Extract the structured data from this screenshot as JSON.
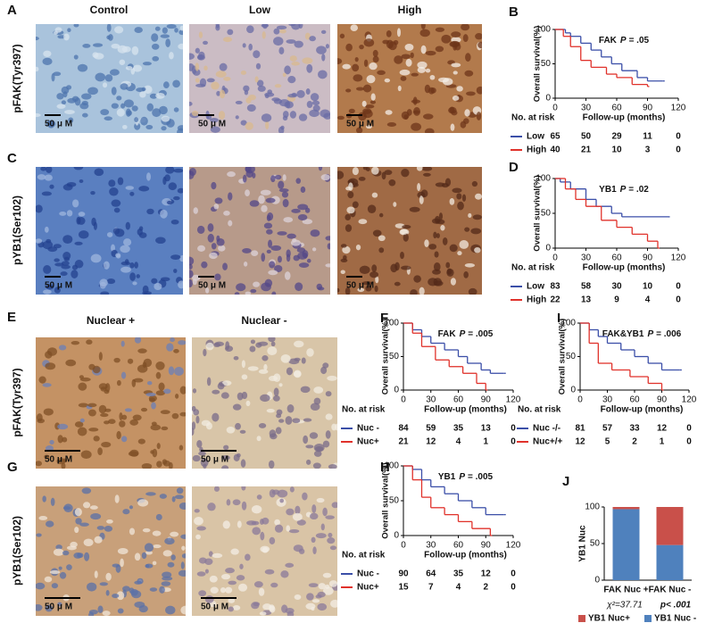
{
  "image_panels": [
    {
      "label": "A",
      "columns": [
        "Control",
        "Low",
        "High"
      ],
      "row_label": "pFAK(Tyr397)",
      "scale_bar": "50 μ M"
    },
    {
      "label": "C",
      "row_label": "pYB1(Ser102)",
      "scale_bar": "50 μ M"
    },
    {
      "label": "E",
      "columns": [
        "Nuclear +",
        "Nuclear -"
      ],
      "row_label": "pFAK(Tyr397)",
      "scale_bar": "50 μ M"
    },
    {
      "label": "G",
      "row_label": "pYB1(Ser102)",
      "scale_bar": "50 μ M"
    }
  ],
  "chart_data": [
    {
      "type": "survival",
      "panel_label": "B",
      "title": "FAK",
      "p_symbol": "P",
      "p_value": "= .05",
      "xlabel": "Follow-up (months)",
      "ylabel": "Overall survival(%)",
      "xlim": [
        0,
        120
      ],
      "xticks": [
        0,
        30,
        60,
        90,
        120
      ],
      "ylim": [
        0,
        100
      ],
      "yticks": [
        0,
        50,
        100
      ],
      "risk_label": "No. at risk",
      "series": [
        {
          "name": "Low",
          "color": "#3b4fa8",
          "x": [
            0,
            10,
            15,
            25,
            35,
            45,
            55,
            65,
            80,
            90,
            105
          ],
          "values": [
            100,
            95,
            90,
            80,
            70,
            60,
            50,
            40,
            30,
            25,
            25
          ],
          "at_risk": [
            65,
            50,
            29,
            11,
            0
          ]
        },
        {
          "name": "High",
          "color": "#e0322b",
          "x": [
            0,
            8,
            15,
            25,
            35,
            50,
            60,
            75,
            90
          ],
          "values": [
            100,
            90,
            75,
            55,
            45,
            35,
            30,
            20,
            17
          ],
          "at_risk": [
            40,
            21,
            10,
            3,
            0
          ]
        }
      ]
    },
    {
      "type": "survival",
      "panel_label": "D",
      "title": "YB1",
      "p_symbol": "P",
      "p_value": "= .02",
      "xlabel": "Follow-up (months)",
      "ylabel": "Overall survival(%)",
      "xlim": [
        0,
        120
      ],
      "xticks": [
        0,
        30,
        60,
        90,
        120
      ],
      "ylim": [
        0,
        100
      ],
      "yticks": [
        0,
        50,
        100
      ],
      "risk_label": "No. at risk",
      "series": [
        {
          "name": "Low",
          "color": "#3b4fa8",
          "x": [
            0,
            5,
            15,
            30,
            40,
            55,
            65,
            110
          ],
          "values": [
            100,
            95,
            85,
            70,
            60,
            50,
            45,
            45
          ],
          "at_risk": [
            83,
            58,
            30,
            10,
            0
          ]
        },
        {
          "name": "High",
          "color": "#e0322b",
          "x": [
            0,
            10,
            20,
            30,
            45,
            60,
            75,
            90,
            100
          ],
          "values": [
            100,
            85,
            70,
            60,
            40,
            30,
            20,
            10,
            0
          ],
          "at_risk": [
            22,
            13,
            9,
            4,
            0
          ]
        }
      ]
    },
    {
      "type": "survival",
      "panel_label": "F",
      "title": "FAK",
      "p_symbol": "P",
      "p_value": "= .005",
      "xlabel": "Follow-up (months)",
      "ylabel": "Overall survival(%)",
      "xlim": [
        0,
        120
      ],
      "xticks": [
        0,
        30,
        60,
        90,
        120
      ],
      "ylim": [
        0,
        100
      ],
      "yticks": [
        0,
        50,
        100
      ],
      "risk_label": "No. at risk",
      "series": [
        {
          "name": "Nuc -",
          "color": "#3b4fa8",
          "x": [
            0,
            10,
            20,
            30,
            45,
            60,
            70,
            85,
            95,
            110
          ],
          "values": [
            100,
            90,
            80,
            70,
            60,
            50,
            40,
            30,
            25,
            25
          ],
          "at_risk": [
            84,
            59,
            35,
            13,
            0
          ]
        },
        {
          "name": "Nuc+",
          "color": "#e0322b",
          "x": [
            0,
            10,
            20,
            35,
            50,
            65,
            80,
            90
          ],
          "values": [
            100,
            85,
            65,
            45,
            35,
            25,
            10,
            0
          ],
          "at_risk": [
            21,
            12,
            4,
            1,
            0
          ]
        }
      ]
    },
    {
      "type": "survival",
      "panel_label": "I",
      "title": "FAK&YB1",
      "p_symbol": "P",
      "p_value": "= .006",
      "xlabel": "Follow-up (months)",
      "ylabel": "Overall survival(%)",
      "xlim": [
        0,
        120
      ],
      "xticks": [
        0,
        30,
        60,
        90,
        120
      ],
      "ylim": [
        0,
        100
      ],
      "yticks": [
        0,
        50,
        100
      ],
      "risk_label": "No. at risk",
      "series": [
        {
          "name": "Nuc -/-",
          "color": "#3b4fa8",
          "x": [
            0,
            10,
            20,
            30,
            45,
            60,
            75,
            90,
            110
          ],
          "values": [
            100,
            90,
            80,
            70,
            60,
            50,
            40,
            30,
            30
          ],
          "at_risk": [
            81,
            57,
            33,
            12,
            0
          ]
        },
        {
          "name": "Nuc+/+",
          "color": "#e0322b",
          "x": [
            0,
            10,
            20,
            35,
            55,
            75,
            90
          ],
          "values": [
            100,
            70,
            40,
            30,
            20,
            10,
            0
          ],
          "at_risk": [
            12,
            5,
            2,
            1,
            0
          ]
        }
      ]
    },
    {
      "type": "survival",
      "panel_label": "H",
      "title": "YB1",
      "p_symbol": "P",
      "p_value": "= .005",
      "xlabel": "Follow-up (months)",
      "ylabel": "Overall survival(%)",
      "xlim": [
        0,
        120
      ],
      "xticks": [
        0,
        30,
        60,
        90,
        120
      ],
      "ylim": [
        0,
        100
      ],
      "yticks": [
        0,
        50,
        100
      ],
      "risk_label": "No. at risk",
      "series": [
        {
          "name": "Nuc -",
          "color": "#3b4fa8",
          "x": [
            0,
            10,
            20,
            30,
            45,
            60,
            75,
            90,
            110
          ],
          "values": [
            100,
            95,
            80,
            70,
            60,
            50,
            40,
            30,
            30
          ],
          "at_risk": [
            90,
            64,
            35,
            12,
            0
          ]
        },
        {
          "name": "Nuc+",
          "color": "#e0322b",
          "x": [
            0,
            10,
            20,
            30,
            45,
            60,
            75,
            95
          ],
          "values": [
            100,
            80,
            55,
            40,
            30,
            20,
            10,
            0
          ],
          "at_risk": [
            15,
            7,
            4,
            2,
            0
          ]
        }
      ]
    },
    {
      "type": "stacked_bar",
      "panel_label": "J",
      "ylabel": "YB1 Nuc",
      "categories": [
        "FAK Nuc +",
        "FAK Nuc -"
      ],
      "ylim": [
        0,
        100
      ],
      "yticks": [
        0,
        50,
        100
      ],
      "stat_label": "χ²=37.71",
      "p_label": "p< .001",
      "series": [
        {
          "name": "YB1 Nuc+",
          "color": "#c9504a",
          "values": [
            3,
            52
          ]
        },
        {
          "name": "YB1 Nuc -",
          "color": "#4f81bd",
          "values": [
            97,
            48
          ]
        }
      ]
    }
  ]
}
